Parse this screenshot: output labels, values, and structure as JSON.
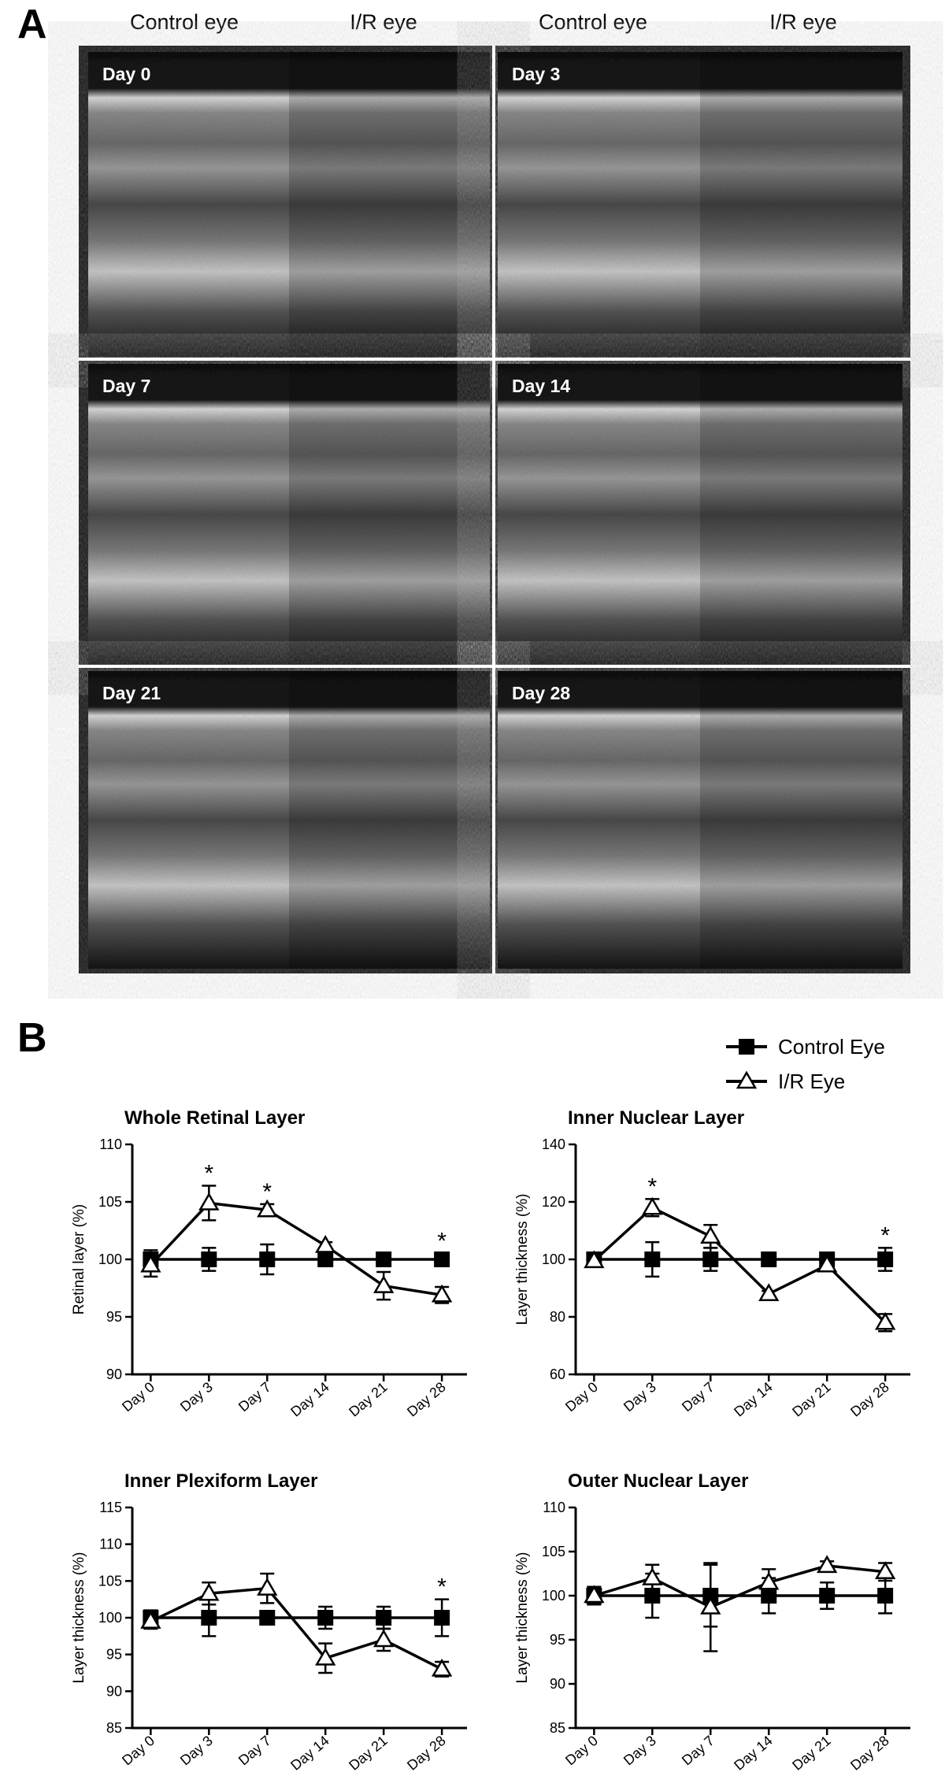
{
  "panel_a": {
    "label": "A",
    "columns": [
      "Control eye",
      "I/R eye",
      "Control eye",
      "I/R eye"
    ],
    "days": [
      "Day 0",
      "Day 3",
      "Day 7",
      "Day 14",
      "Day 21",
      "Day 28"
    ]
  },
  "panel_b": {
    "label": "B"
  },
  "chart_data": [
    {
      "type": "line",
      "title": "Whole Retinal Layer",
      "y_label": "Retinal layer (%)",
      "categories": [
        "Day 0",
        "Day 3",
        "Day 7",
        "Day 14",
        "Day 21",
        "Day 28"
      ],
      "ylim": [
        90,
        110
      ],
      "yticks": [
        90,
        95,
        100,
        105,
        110
      ],
      "annotations": [
        null,
        "*",
        "*",
        null,
        null,
        "*"
      ],
      "series": [
        {
          "name": "Control Eye",
          "color": "#000000",
          "marker": "square",
          "values": [
            100,
            100,
            100,
            100,
            100,
            100
          ],
          "errors": [
            0.8,
            1,
            1.3,
            0.5,
            0.5,
            0.5
          ]
        },
        {
          "name": "I/R Eye",
          "color": "#000000",
          "marker": "triangle",
          "values": [
            99.5,
            104.9,
            104.3,
            101.2,
            97.7,
            96.9
          ],
          "errors": [
            1,
            1.5,
            0.5,
            0.3,
            1.2,
            0.7
          ]
        }
      ]
    },
    {
      "type": "line",
      "title": "Inner Nuclear Layer",
      "y_label": "Layer thickness (%)",
      "categories": [
        "Day 0",
        "Day 3",
        "Day 7",
        "Day 14",
        "Day 21",
        "Day 28"
      ],
      "ylim": [
        60,
        140
      ],
      "yticks": [
        60,
        80,
        100,
        120,
        140
      ],
      "annotations": [
        null,
        "*",
        null,
        null,
        null,
        "*"
      ],
      "series": [
        {
          "color": "#000000",
          "marker": "square",
          "values": [
            100,
            100,
            100,
            100,
            100,
            100
          ],
          "errors": [
            1,
            6,
            4,
            1,
            1,
            4
          ]
        },
        {
          "color": "#000000",
          "marker": "triangle",
          "values": [
            99.5,
            118,
            108,
            88,
            98,
            78
          ],
          "errors": [
            1,
            3,
            4,
            1,
            2,
            3
          ]
        }
      ]
    },
    {
      "type": "line",
      "title": "Inner Plexiform Layer",
      "y_label": "Layer thickness (%)",
      "categories": [
        "Day 0",
        "Day 3",
        "Day 7",
        "Day 14",
        "Day 21",
        "Day 28"
      ],
      "ylim": [
        85,
        115
      ],
      "yticks": [
        85,
        90,
        95,
        100,
        105,
        110,
        115
      ],
      "annotations": [
        null,
        null,
        null,
        null,
        null,
        "*"
      ],
      "series": [
        {
          "color": "#000000",
          "marker": "square",
          "values": [
            100,
            100,
            100,
            100,
            100,
            100
          ],
          "errors": [
            1,
            2.5,
            0.5,
            1.5,
            1.5,
            2.5
          ]
        },
        {
          "color": "#000000",
          "marker": "triangle",
          "values": [
            99.5,
            103.3,
            104,
            94.5,
            97,
            93
          ],
          "errors": [
            1,
            1.5,
            2,
            2,
            1.5,
            1
          ]
        }
      ]
    },
    {
      "type": "line",
      "title": "Outer Nuclear Layer",
      "y_label": "Layer thickness (%)",
      "categories": [
        "Day 0",
        "Day 3",
        "Day 7",
        "Day 14",
        "Day 21",
        "Day 28"
      ],
      "ylim": [
        85,
        110
      ],
      "yticks": [
        85,
        90,
        95,
        100,
        105,
        110
      ],
      "annotations": [
        null,
        null,
        null,
        null,
        null,
        null
      ],
      "series": [
        {
          "color": "#000000",
          "marker": "square",
          "values": [
            100,
            100,
            100,
            100,
            100,
            100
          ],
          "errors": [
            1,
            2.5,
            3.5,
            2,
            1.5,
            2
          ]
        },
        {
          "color": "#000000",
          "marker": "triangle",
          "values": [
            100,
            102,
            98.7,
            101.5,
            103.4,
            102.7
          ],
          "errors": [
            1,
            1.5,
            5,
            1.5,
            0.5,
            1
          ]
        }
      ]
    }
  ]
}
